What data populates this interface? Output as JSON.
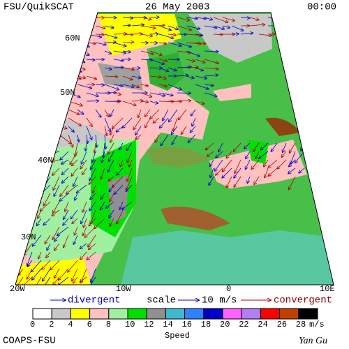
{
  "header": {
    "title": "FSU/QuikSCAT",
    "date": "26 May 2003",
    "time": "00:00"
  },
  "map": {
    "lat_labels": [
      "60N",
      "50N",
      "40N",
      "30N"
    ],
    "lon_labels": [
      "20W",
      "10W",
      "0",
      "10E"
    ]
  },
  "legend": {
    "divergent": "divergent",
    "scale": "scale",
    "scale_value": "10 m/s",
    "convergent": "convergent",
    "colorbar": {
      "labels": [
        "0",
        "2",
        "4",
        "6",
        "8",
        "10",
        "12",
        "14",
        "16",
        "18",
        "20",
        "22",
        "24",
        "26",
        "28"
      ],
      "unit": "m/s",
      "title": "Speed",
      "colors": [
        "#ffffff",
        "#c8c8c8",
        "#ffff00",
        "#ffc0c0",
        "#a0f0a0",
        "#00e000",
        "#909090",
        "#40b8d0",
        "#3080ff",
        "#0000c8",
        "#ff60ff",
        "#b080f0",
        "#ff0000",
        "#c04000",
        "#000000"
      ]
    }
  },
  "footer": {
    "left": "COAPS-FSU",
    "right": "Yan Gu"
  }
}
